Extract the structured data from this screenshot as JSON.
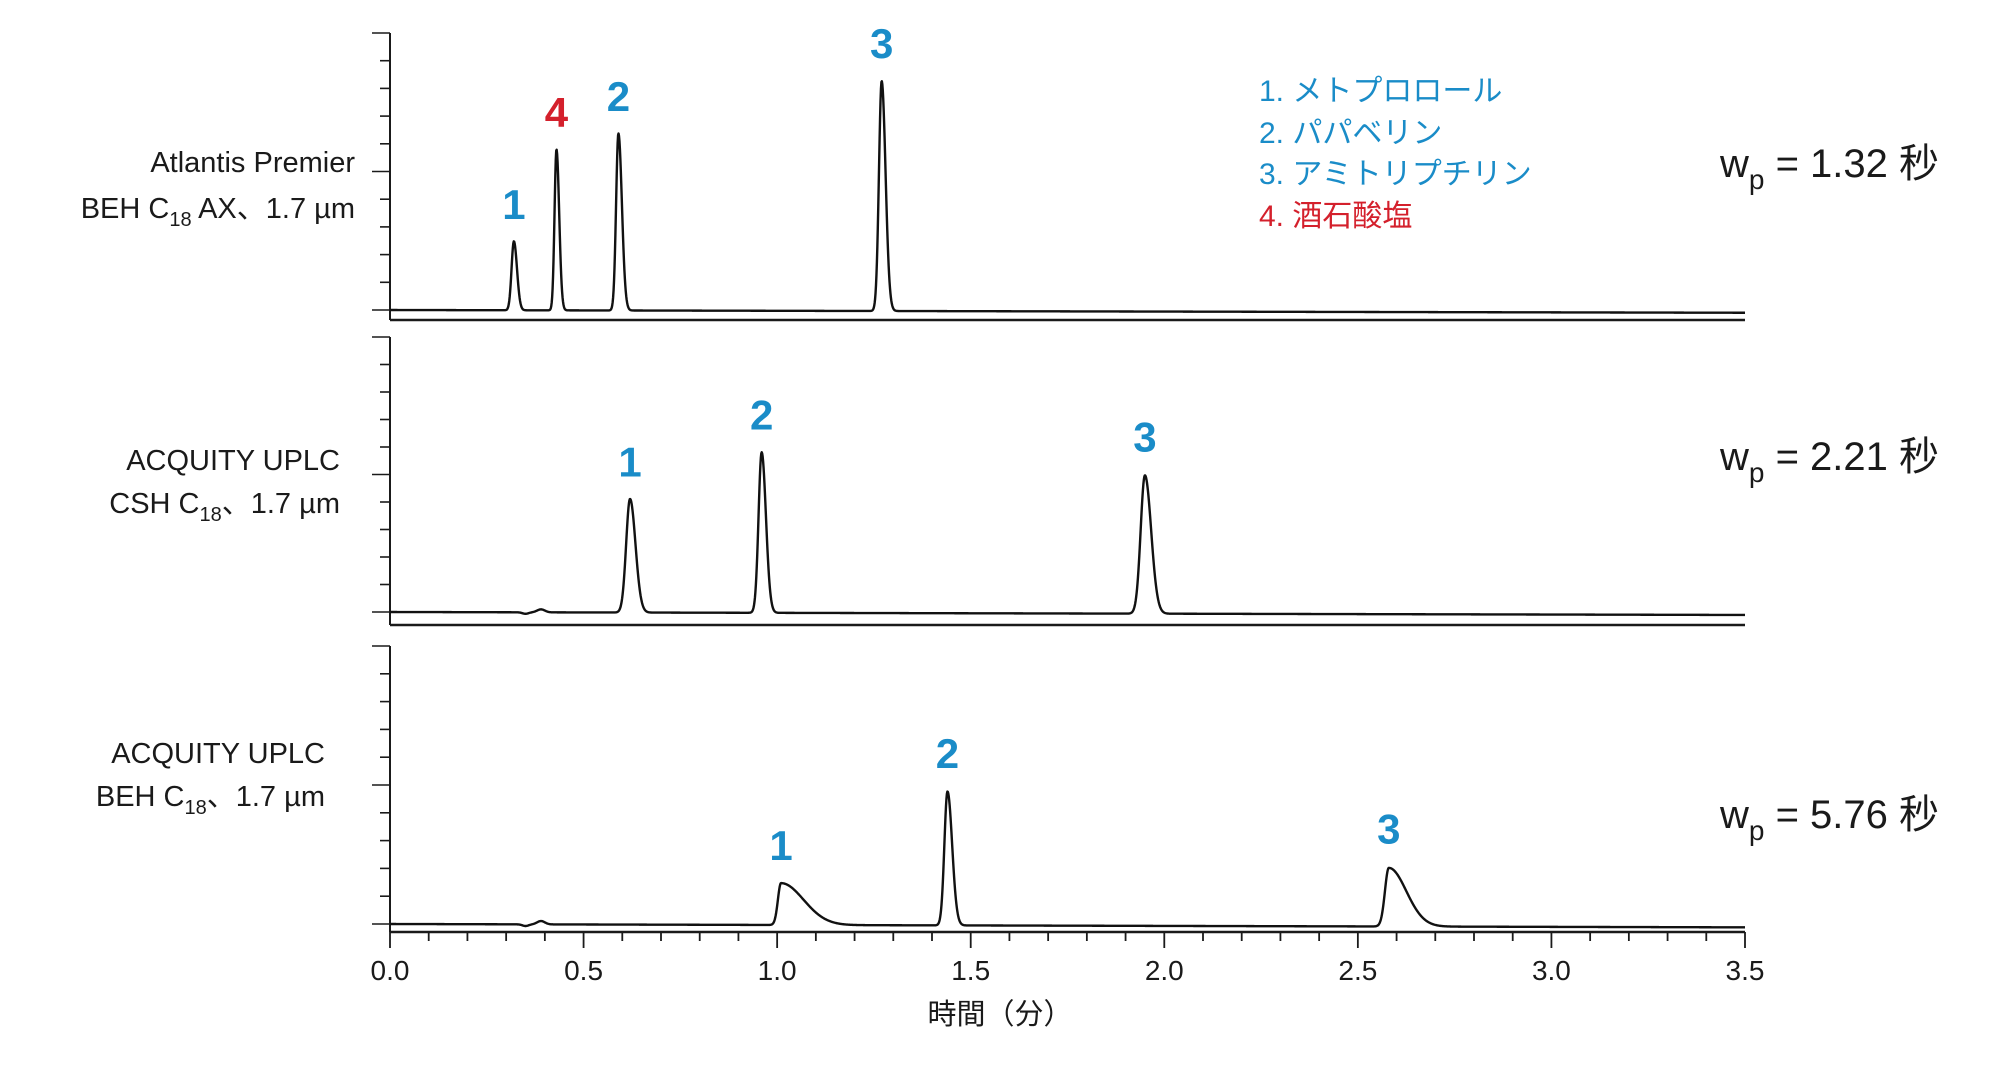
{
  "chart_data": {
    "type": "line",
    "xlabel": "時間（分）",
    "xlim": [
      0.0,
      3.5
    ],
    "x_ticks": [
      "0.0",
      "0.5",
      "1.0",
      "1.5",
      "2.0",
      "2.5",
      "3.0",
      "3.5"
    ],
    "x_tick_values": [
      0.0,
      0.5,
      1.0,
      1.5,
      2.0,
      2.5,
      3.0,
      3.5
    ],
    "grid": false,
    "legend_position": "top-right",
    "legend": [
      {
        "text": "1. メトプロロール",
        "color": "#1a8cc8"
      },
      {
        "text": "2. パパベリン",
        "color": "#1a8cc8"
      },
      {
        "text": "3. アミトリプチリン",
        "color": "#1a8cc8"
      },
      {
        "text": "4. 酒石酸塩",
        "color": "#d4202c"
      }
    ],
    "panels": [
      {
        "column_line1": "Atlantis Premier",
        "column_line2_pre": "BEH C",
        "column_line2_sub": "18",
        "column_line2_post": " AX、1.7 µm",
        "wp_label": "w",
        "wp_sub": "p",
        "wp_value": " = 1.32 秒",
        "ylim": [
          0,
          1.0
        ],
        "peaks": [
          {
            "label": "1",
            "time": 0.32,
            "height": 0.3,
            "width": 0.006,
            "tail": 0.002,
            "color": "#1a8cc8"
          },
          {
            "label": "4",
            "time": 0.43,
            "height": 0.7,
            "width": 0.005,
            "tail": 0.002,
            "color": "#d4202c"
          },
          {
            "label": "2",
            "time": 0.59,
            "height": 0.77,
            "width": 0.006,
            "tail": 0.003,
            "color": "#1a8cc8"
          },
          {
            "label": "3",
            "time": 1.27,
            "height": 1.0,
            "width": 0.007,
            "tail": 0.003,
            "color": "#1a8cc8"
          }
        ]
      },
      {
        "column_line1": "ACQUITY UPLC",
        "column_line2_pre": "CSH C",
        "column_line2_sub": "18",
        "column_line2_post": "、1.7 µm",
        "wp_label": "w",
        "wp_sub": "p",
        "wp_value": " = 2.21 秒",
        "ylim": [
          0,
          1.0
        ],
        "peaks": [
          {
            "label": "1",
            "time": 0.62,
            "height": 0.46,
            "width": 0.01,
            "tail": 0.004,
            "color": "#1a8cc8"
          },
          {
            "label": "2",
            "time": 0.96,
            "height": 0.65,
            "width": 0.008,
            "tail": 0.003,
            "color": "#1a8cc8"
          },
          {
            "label": "3",
            "time": 1.95,
            "height": 0.56,
            "width": 0.011,
            "tail": 0.005,
            "color": "#1a8cc8"
          }
        ]
      },
      {
        "column_line1": "ACQUITY UPLC",
        "column_line2_pre": "BEH C",
        "column_line2_sub": "18",
        "column_line2_post": "、1.7 µm",
        "wp_label": "w",
        "wp_sub": "p",
        "wp_value": " = 5.76 秒",
        "ylim": [
          0,
          1.0
        ],
        "peaks": [
          {
            "label": "1",
            "time": 1.01,
            "height": 0.15,
            "width": 0.008,
            "tail": 0.05,
            "color": "#1a8cc8"
          },
          {
            "label": "2",
            "time": 1.44,
            "height": 0.48,
            "width": 0.008,
            "tail": 0.004,
            "color": "#1a8cc8"
          },
          {
            "label": "3",
            "time": 2.58,
            "height": 0.21,
            "width": 0.01,
            "tail": 0.035,
            "color": "#1a8cc8"
          }
        ]
      }
    ]
  }
}
